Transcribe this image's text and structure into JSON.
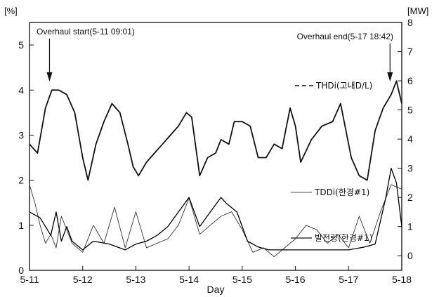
{
  "chart_data": {
    "type": "line",
    "xlabel": "Day",
    "left_axis": {
      "unit_label": "[%]",
      "range": [
        0,
        5.5
      ],
      "ticks": [
        0,
        1,
        2,
        3,
        4,
        5
      ]
    },
    "right_axis": {
      "unit_label": "[MW]",
      "range": [
        -0.5,
        8
      ],
      "ticks": [
        0,
        1,
        2,
        3,
        4,
        5,
        6,
        7,
        8
      ]
    },
    "x_range": [
      0,
      7
    ],
    "x_ticks": [
      {
        "value": 0,
        "label": "5-11"
      },
      {
        "value": 1,
        "label": "5-12"
      },
      {
        "value": 2,
        "label": "5-13"
      },
      {
        "value": 3,
        "label": "5-14"
      },
      {
        "value": 4,
        "label": "5-15"
      },
      {
        "value": 5,
        "label": "5-16"
      },
      {
        "value": 6,
        "label": "5-17"
      },
      {
        "value": 7,
        "label": "5-18"
      }
    ],
    "grid": false,
    "annotations": [
      {
        "text": "Overhaul start(5-11 09:01)",
        "x": 0.376
      },
      {
        "text": "Overhaul end(5-17 18:42)",
        "x": 6.779
      }
    ],
    "legend": [
      {
        "text": "THDi(고내D/L)",
        "style": "dashed"
      },
      {
        "text": "TDDi(한경#1)",
        "style": "thin"
      },
      {
        "text": "발전량(한경#1)",
        "style": "solid"
      }
    ],
    "series": [
      {
        "name": "THDi(고내D/L)",
        "axis": "left",
        "x": [
          0,
          0.15,
          0.3,
          0.42,
          0.55,
          0.7,
          0.85,
          1.0,
          1.1,
          1.25,
          1.4,
          1.55,
          1.7,
          1.85,
          1.95,
          2.05,
          2.2,
          2.35,
          2.5,
          2.65,
          2.8,
          2.95,
          3.05,
          3.2,
          3.35,
          3.5,
          3.6,
          3.75,
          3.85,
          4.0,
          4.15,
          4.3,
          4.45,
          4.6,
          4.75,
          4.9,
          5.0,
          5.1,
          5.3,
          5.5,
          5.7,
          5.85,
          5.95,
          6.05,
          6.2,
          6.35,
          6.5,
          6.65,
          6.8,
          6.9,
          7.0
        ],
        "y": [
          2.8,
          2.6,
          3.6,
          4.0,
          4.0,
          3.9,
          3.5,
          2.5,
          2.0,
          2.8,
          3.3,
          3.7,
          3.5,
          2.8,
          2.3,
          2.1,
          2.4,
          2.6,
          2.8,
          3.0,
          3.2,
          3.5,
          3.4,
          2.1,
          2.5,
          2.6,
          2.9,
          2.8,
          3.3,
          3.3,
          3.2,
          2.5,
          2.5,
          2.8,
          2.7,
          3.6,
          3.2,
          2.4,
          2.9,
          3.2,
          3.3,
          3.7,
          3.1,
          2.5,
          2.1,
          2.0,
          3.1,
          3.6,
          3.9,
          4.2,
          3.7
        ]
      },
      {
        "name": "TDDi(한경#1)",
        "axis": "left",
        "x": [
          0,
          0.1,
          0.2,
          0.3,
          0.4,
          0.5,
          0.6,
          0.8,
          1.0,
          1.2,
          1.4,
          1.6,
          1.8,
          2.0,
          2.2,
          2.4,
          2.6,
          2.8,
          3.0,
          3.2,
          3.4,
          3.6,
          3.8,
          4.0,
          4.2,
          4.4,
          4.6,
          4.8,
          5.0,
          5.2,
          5.4,
          5.6,
          5.8,
          6.0,
          6.2,
          6.4,
          6.6,
          6.8,
          7.0
        ],
        "y": [
          1.9,
          1.5,
          1.0,
          0.6,
          0.8,
          0.5,
          1.2,
          0.6,
          0.4,
          1.0,
          0.6,
          1.4,
          0.5,
          1.3,
          0.5,
          0.6,
          0.7,
          1.0,
          1.6,
          0.8,
          1.0,
          1.2,
          1.3,
          0.9,
          0.4,
          0.5,
          0.3,
          0.5,
          0.7,
          1.0,
          0.9,
          0.6,
          0.8,
          0.5,
          1.2,
          0.6,
          1.3,
          1.9,
          1.8
        ]
      },
      {
        "name": "발전량(한경#1)",
        "axis": "right",
        "x": [
          0,
          0.2,
          0.4,
          0.5,
          0.6,
          0.7,
          0.8,
          1.0,
          1.2,
          1.5,
          1.8,
          2.0,
          2.2,
          2.4,
          2.6,
          2.8,
          3.0,
          3.2,
          3.4,
          3.6,
          3.7,
          3.9,
          4.1,
          4.3,
          4.5,
          4.7,
          4.9,
          5.1,
          5.4,
          5.7,
          6.0,
          6.3,
          6.5,
          6.7,
          6.8,
          6.9,
          7.0
        ],
        "y": [
          1.5,
          1.3,
          0.7,
          1.5,
          0.5,
          1.0,
          0.5,
          0.2,
          0.5,
          0.4,
          0.2,
          0.4,
          0.5,
          0.7,
          1.0,
          1.5,
          2.0,
          1.0,
          1.5,
          2.0,
          1.8,
          1.5,
          0.5,
          0.3,
          0.2,
          0.2,
          0.2,
          0.2,
          0.2,
          0.2,
          0.2,
          0.3,
          0.4,
          2.0,
          3.0,
          2.5,
          1.0
        ]
      }
    ]
  }
}
